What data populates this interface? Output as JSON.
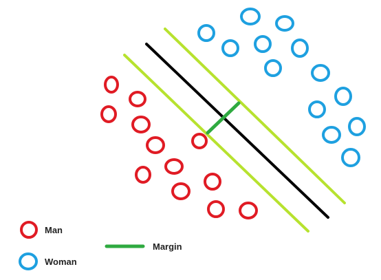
{
  "colors": {
    "man": "#e01b24",
    "woman": "#1ea0e0",
    "margin": "#2faa40",
    "support_line": "#b7e22f",
    "hyperplane": "#000000"
  },
  "legend": {
    "man_label": "Man",
    "woman_label": "Woman",
    "margin_label": "Margin"
  }
}
